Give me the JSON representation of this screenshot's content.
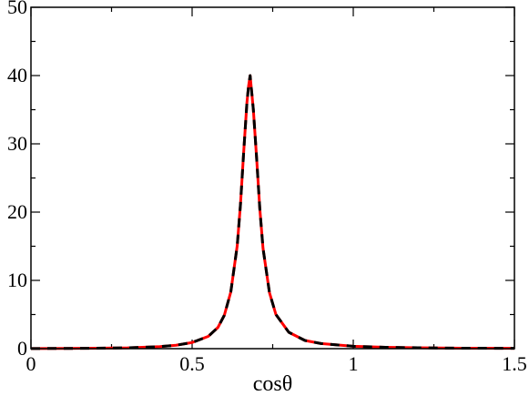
{
  "chart_data": {
    "type": "line",
    "title": "",
    "xlabel": "cosθ",
    "ylabel": "",
    "xlim": [
      0,
      1.5
    ],
    "ylim": [
      0,
      50
    ],
    "x_ticks": [
      "0",
      "0.5",
      "1",
      "1.5"
    ],
    "y_ticks": [
      "0",
      "10",
      "20",
      "30",
      "40",
      "50"
    ],
    "grid": false,
    "legend": "none",
    "x": [
      0,
      0.1,
      0.2,
      0.3,
      0.4,
      0.45,
      0.5,
      0.55,
      0.58,
      0.6,
      0.62,
      0.64,
      0.65,
      0.66,
      0.67,
      0.675,
      0.68,
      0.69,
      0.7,
      0.71,
      0.72,
      0.74,
      0.76,
      0.8,
      0.85,
      0.9,
      1.0,
      1.1,
      1.2,
      1.3,
      1.4,
      1.5
    ],
    "series": [
      {
        "values": [
          0.02,
          0.03,
          0.06,
          0.12,
          0.3,
          0.5,
          0.9,
          1.8,
          3.1,
          4.9,
          8.3,
          15.1,
          21.1,
          28.8,
          36.0,
          38.4,
          40.0,
          35.0,
          28.0,
          20.5,
          14.7,
          8.2,
          5.0,
          2.4,
          1.2,
          0.75,
          0.35,
          0.2,
          0.13,
          0.08,
          0.06,
          0.05
        ],
        "color": "#ff0000",
        "style": "solid"
      },
      {
        "values": [
          0.02,
          0.03,
          0.06,
          0.12,
          0.3,
          0.5,
          0.9,
          1.8,
          3.1,
          4.9,
          8.3,
          15.1,
          21.1,
          28.8,
          36.0,
          38.4,
          40.0,
          35.0,
          28.0,
          20.5,
          14.7,
          8.2,
          5.0,
          2.4,
          1.2,
          0.75,
          0.35,
          0.2,
          0.13,
          0.08,
          0.06,
          0.05
        ],
        "color": "#000000",
        "style": "dashed"
      }
    ]
  }
}
